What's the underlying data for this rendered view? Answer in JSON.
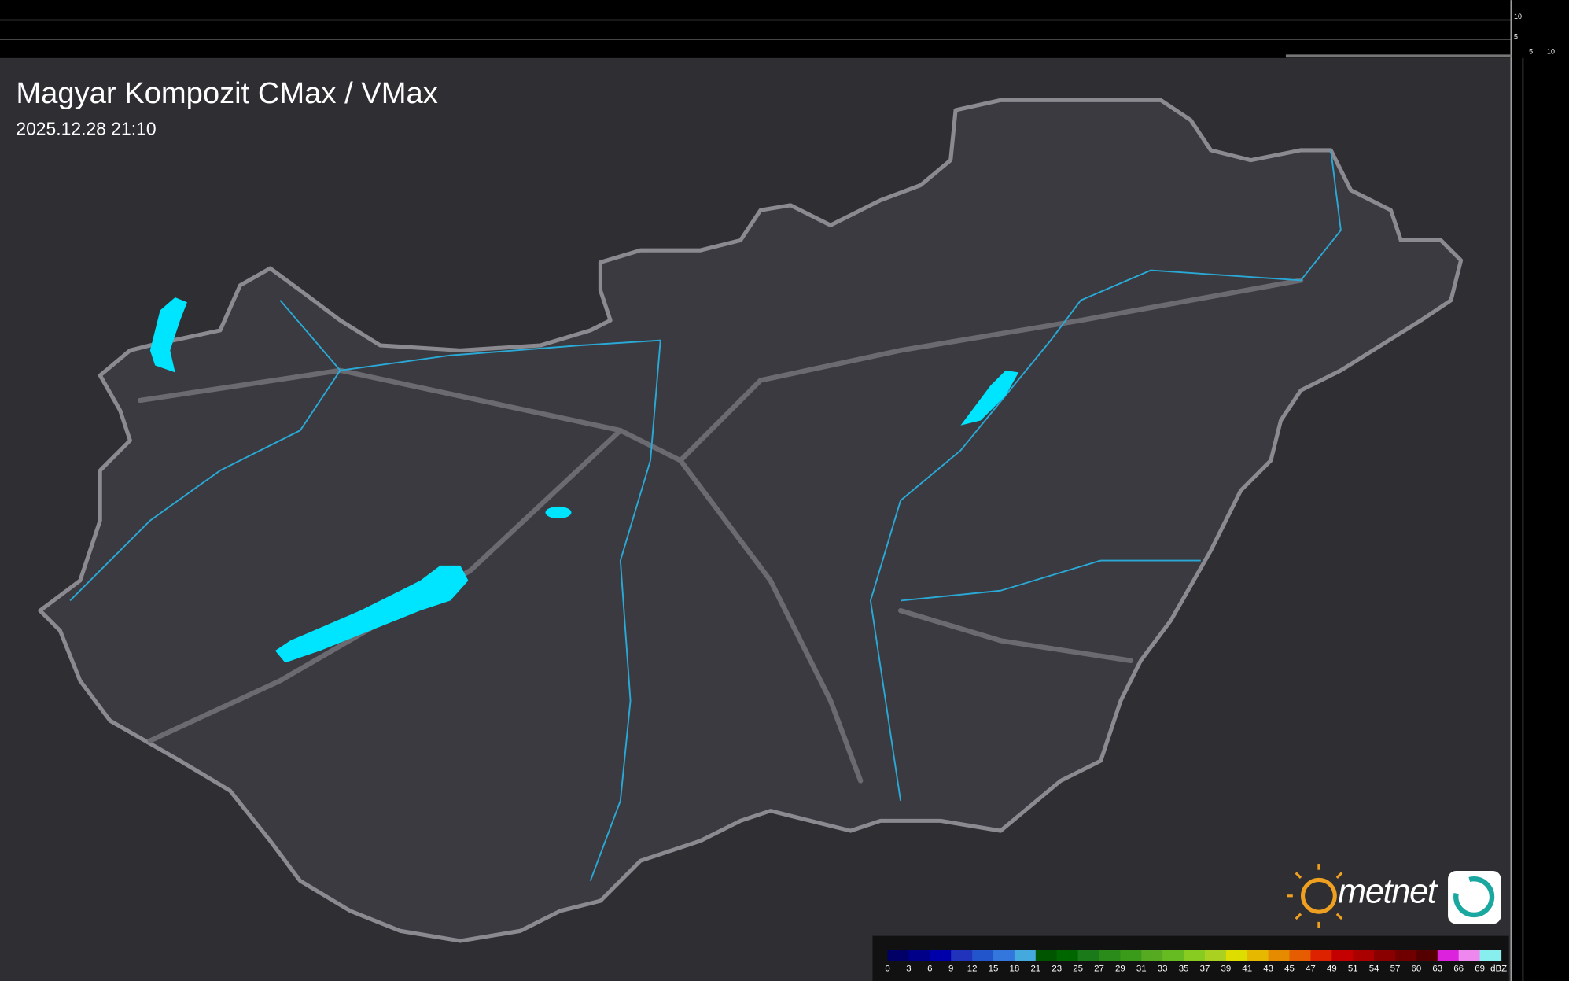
{
  "header": {
    "title": "Magyar Kompozit CMax / VMax",
    "timestamp": "2025.12.28 21:10"
  },
  "profile_axes": {
    "top_labels": [
      "10",
      "5"
    ],
    "side_labels": [
      "5",
      "10"
    ]
  },
  "logo": {
    "text": "metnet"
  },
  "legend": {
    "unit": "dBZ",
    "items": [
      {
        "label": "0",
        "color": "#000066"
      },
      {
        "label": "3",
        "color": "#000088"
      },
      {
        "label": "6",
        "color": "#0000aa"
      },
      {
        "label": "9",
        "color": "#2233bb"
      },
      {
        "label": "12",
        "color": "#2255cc"
      },
      {
        "label": "15",
        "color": "#3377dd"
      },
      {
        "label": "18",
        "color": "#44aadd"
      },
      {
        "label": "21",
        "color": "#005500"
      },
      {
        "label": "23",
        "color": "#006600"
      },
      {
        "label": "25",
        "color": "#1a7a1a"
      },
      {
        "label": "27",
        "color": "#2a8a1a"
      },
      {
        "label": "29",
        "color": "#3a9a1a"
      },
      {
        "label": "31",
        "color": "#55aa22"
      },
      {
        "label": "33",
        "color": "#66bb22"
      },
      {
        "label": "35",
        "color": "#88cc22"
      },
      {
        "label": "37",
        "color": "#aad022"
      },
      {
        "label": "39",
        "color": "#dddd00"
      },
      {
        "label": "41",
        "color": "#e6b800"
      },
      {
        "label": "43",
        "color": "#e68a00"
      },
      {
        "label": "45",
        "color": "#e65c00"
      },
      {
        "label": "47",
        "color": "#dd2200"
      },
      {
        "label": "49",
        "color": "#c40000"
      },
      {
        "label": "51",
        "color": "#aa0000"
      },
      {
        "label": "54",
        "color": "#8a0000"
      },
      {
        "label": "57",
        "color": "#700000"
      },
      {
        "label": "60",
        "color": "#550000"
      },
      {
        "label": "63",
        "color": "#dd22dd"
      },
      {
        "label": "66",
        "color": "#ee88ee"
      },
      {
        "label": "69",
        "color": "#88eeee"
      }
    ]
  }
}
